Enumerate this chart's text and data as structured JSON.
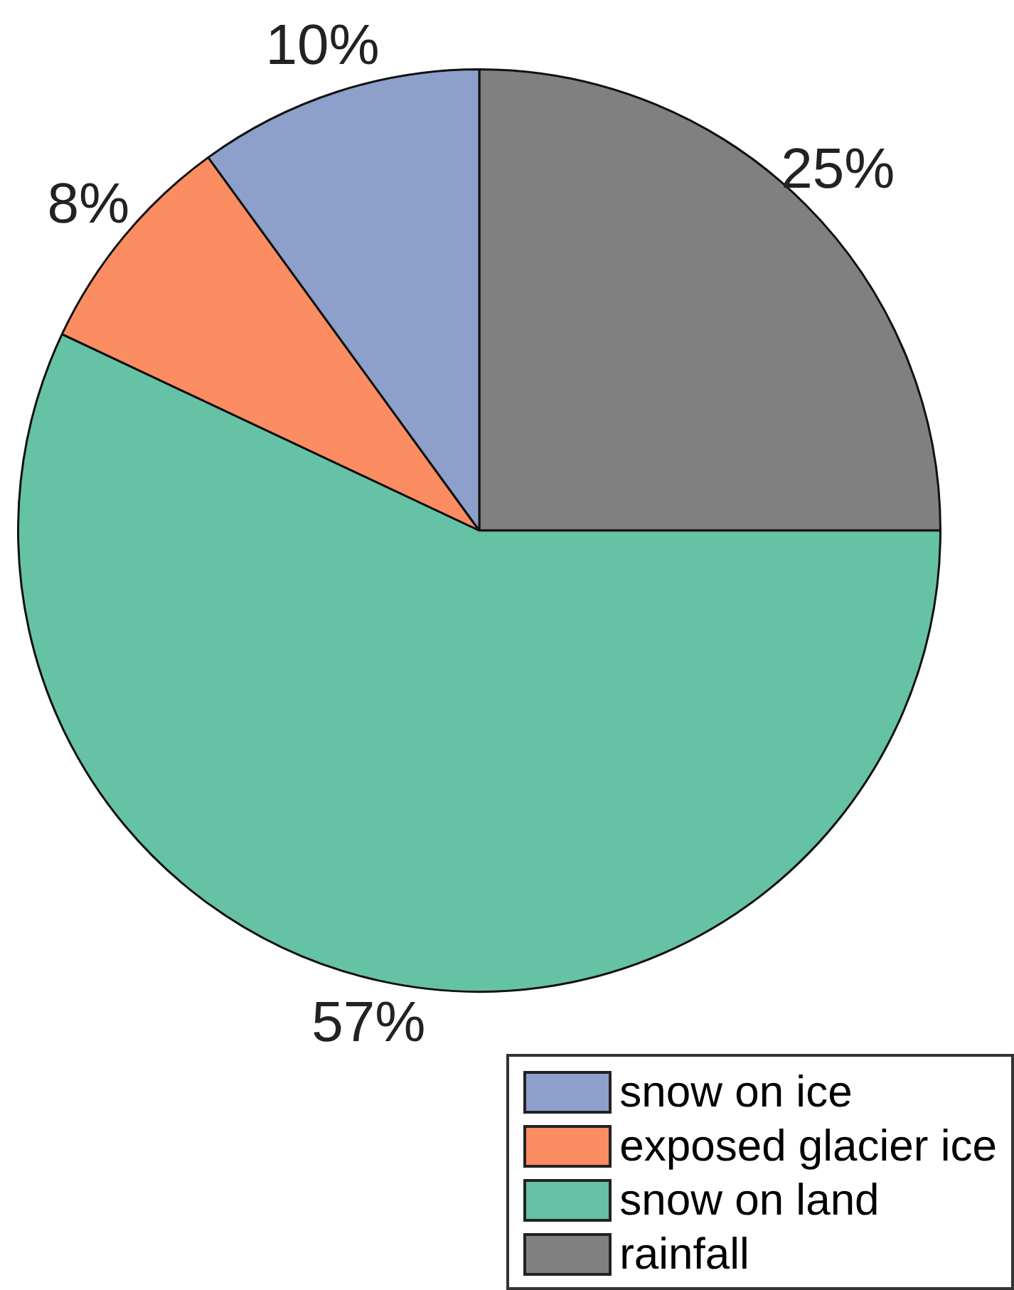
{
  "chart_data": {
    "type": "pie",
    "categories": [
      "snow on ice",
      "exposed glacier ice",
      "snow on land",
      "rainfall"
    ],
    "values": [
      10,
      8,
      57,
      25
    ],
    "colors": [
      "#8da0cb",
      "#fc8d62",
      "#66c2a5",
      "#808080"
    ],
    "value_labels": [
      "10%",
      "8%",
      "57%",
      "25%"
    ],
    "legend": "bottom right"
  }
}
